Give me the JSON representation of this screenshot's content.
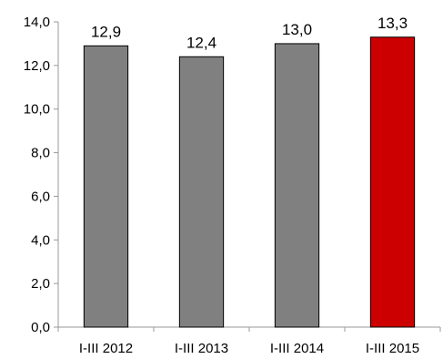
{
  "chart_data": {
    "type": "bar",
    "title": "",
    "xlabel": "",
    "ylabel": "",
    "categories": [
      "I-III 2012",
      "I-III 2013",
      "I-III 2014",
      "I-III 2015"
    ],
    "values": [
      12.9,
      12.4,
      13.0,
      13.3
    ],
    "data_labels": [
      "12,9",
      "12,4",
      "13,0",
      "13,3"
    ],
    "bar_colors": [
      "#808080",
      "#808080",
      "#808080",
      "#cc0000"
    ],
    "ylim": [
      0,
      14
    ],
    "yticks": [
      0,
      2,
      4,
      6,
      8,
      10,
      12,
      14
    ],
    "ytick_labels": [
      "0,0",
      "2,0",
      "4,0",
      "6,0",
      "8,0",
      "10,0",
      "12,0",
      "14,0"
    ],
    "grid": false,
    "legend": "none"
  }
}
